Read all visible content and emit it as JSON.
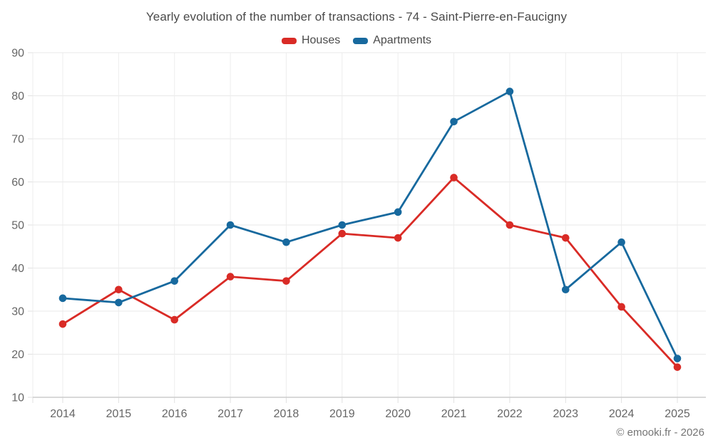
{
  "chart_data": {
    "type": "line",
    "title": "Yearly evolution of the number of transactions - 74 - Saint-Pierre-en-Faucigny",
    "categories": [
      "2014",
      "2015",
      "2016",
      "2017",
      "2018",
      "2019",
      "2020",
      "2021",
      "2022",
      "2023",
      "2024",
      "2025"
    ],
    "series": [
      {
        "name": "Houses",
        "color": "#d92b26",
        "values": [
          27,
          35,
          28,
          38,
          37,
          48,
          47,
          61,
          50,
          47,
          31,
          17
        ]
      },
      {
        "name": "Apartments",
        "color": "#17699e",
        "values": [
          33,
          32,
          37,
          50,
          46,
          50,
          53,
          74,
          81,
          35,
          46,
          19
        ]
      }
    ],
    "xlabel": "",
    "ylabel": "",
    "ylim": [
      10,
      90
    ],
    "yticks": [
      10,
      20,
      30,
      40,
      50,
      60,
      70,
      80,
      90
    ],
    "grid": true,
    "legend_position": "top"
  },
  "footer": {
    "copyright": "© emooki.fr - 2026"
  }
}
